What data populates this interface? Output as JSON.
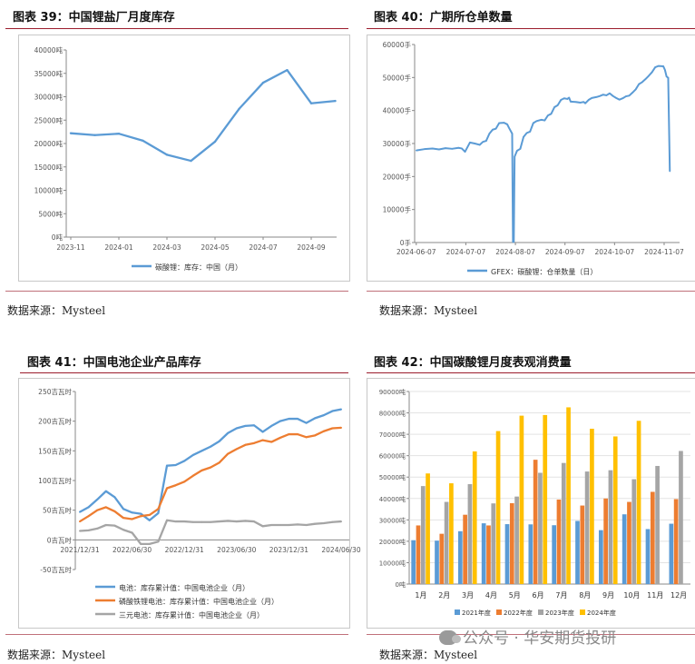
{
  "panels": {
    "p39": {
      "title": "图表 39：中国锂盐厂月度库存",
      "source": "数据来源：Mysteel"
    },
    "p40": {
      "title": "图表 40：广期所仓单数量",
      "source": "数据来源：Mysteel"
    },
    "p41": {
      "title": "图表 41：中国电池企业产品库存",
      "source": "数据来源：Mysteel"
    },
    "p42": {
      "title": "图表 42：中国碳酸锂月度表观消费量",
      "source": "数据来源：Mysteel"
    }
  },
  "watermark": {
    "text": "公众号 · 华安期货投研"
  },
  "chart_data": [
    {
      "id": "c39",
      "type": "line",
      "title": "中国锂盐厂月度库存",
      "yticks": [
        "0吨",
        "5000吨",
        "10000吨",
        "15000吨",
        "20000吨",
        "25000吨",
        "30000吨",
        "35000吨",
        "40000吨"
      ],
      "ylim": [
        0,
        40000
      ],
      "xticks": [
        "2023-11",
        "2024-01",
        "2024-03",
        "2024-05",
        "2024-07",
        "2024-09"
      ],
      "x_months": [
        0,
        1,
        2,
        3,
        4,
        5,
        6,
        7,
        8,
        9,
        10,
        11
      ],
      "series": [
        {
          "name": "碳酸锂：库存：中国（月）",
          "color": "#5b9bd5",
          "values": [
            22200,
            21800,
            22100,
            20600,
            17600,
            16300,
            20400,
            27400,
            33000,
            35700,
            28600,
            29100
          ]
        }
      ]
    },
    {
      "id": "c40",
      "type": "line",
      "title": "广期所仓单数量",
      "yticks": [
        "0手",
        "10000手",
        "20000手",
        "30000手",
        "40000手",
        "50000手",
        "60000手"
      ],
      "ylim": [
        0,
        60000
      ],
      "xticks": [
        "2024-06-07",
        "2024-07-07",
        "2024-08-07",
        "2024-09-07",
        "2024-10-07",
        "2024-11-07"
      ],
      "series": [
        {
          "name": "GFEX：碳酸锂：仓单数量（日）",
          "color": "#5b9bd5",
          "points": [
            [
              0,
              27900
            ],
            [
              5,
              28300
            ],
            [
              10,
              28500
            ],
            [
              14,
              28200
            ],
            [
              18,
              28600
            ],
            [
              22,
              28400
            ],
            [
              26,
              28700
            ],
            [
              28,
              28500
            ],
            [
              30,
              27500
            ],
            [
              33,
              30300
            ],
            [
              36,
              30000
            ],
            [
              39,
              29600
            ],
            [
              41,
              30500
            ],
            [
              43,
              30800
            ],
            [
              45,
              33000
            ],
            [
              47,
              34200
            ],
            [
              49,
              34500
            ],
            [
              51,
              36200
            ],
            [
              54,
              36300
            ],
            [
              56,
              35800
            ],
            [
              57,
              34800
            ],
            [
              59,
              33000
            ],
            [
              59.5,
              200
            ],
            [
              60,
              200
            ],
            [
              60.5,
              26000
            ],
            [
              62,
              27800
            ],
            [
              64,
              28400
            ],
            [
              66,
              32000
            ],
            [
              68,
              33200
            ],
            [
              70,
              33600
            ],
            [
              72,
              36200
            ],
            [
              74,
              36800
            ],
            [
              77,
              37200
            ],
            [
              79,
              37000
            ],
            [
              81,
              38500
            ],
            [
              83,
              39000
            ],
            [
              85,
              41000
            ],
            [
              87,
              41600
            ],
            [
              89,
              43200
            ],
            [
              91,
              43700
            ],
            [
              93,
              43500
            ],
            [
              94,
              43900
            ],
            [
              95,
              42700
            ],
            [
              98,
              42600
            ],
            [
              101,
              42400
            ],
            [
              103,
              42600
            ],
            [
              104,
              42200
            ],
            [
              106,
              43200
            ],
            [
              108,
              43800
            ],
            [
              111,
              44100
            ],
            [
              113,
              44400
            ],
            [
              115,
              44800
            ],
            [
              117,
              44600
            ],
            [
              119,
              45200
            ],
            [
              121,
              44400
            ],
            [
              123,
              43800
            ],
            [
              125,
              43300
            ],
            [
              127,
              43700
            ],
            [
              129,
              44300
            ],
            [
              131,
              44500
            ],
            [
              133,
              45400
            ],
            [
              135,
              46400
            ],
            [
              137,
              48000
            ],
            [
              139,
              48600
            ],
            [
              141,
              49500
            ],
            [
              143,
              50500
            ],
            [
              145,
              51600
            ],
            [
              147,
              53100
            ],
            [
              149,
              53500
            ],
            [
              152,
              53400
            ],
            [
              153,
              52300
            ],
            [
              154,
              50300
            ],
            [
              155,
              49900
            ],
            [
              156,
              21600
            ]
          ]
        }
      ],
      "xlim": [
        -1,
        162
      ]
    },
    {
      "id": "c41",
      "type": "line",
      "title": "中国电池企业产品库存",
      "yticks": [
        "-50吉瓦时",
        "0吉瓦时",
        "50吉瓦时",
        "100吉瓦时",
        "150吉瓦时",
        "200吉瓦时",
        "250吉瓦时"
      ],
      "ylim": [
        -50,
        250
      ],
      "xticks": [
        "2021/12/31",
        "2022/06/30",
        "2022/12/31",
        "2023/06/30",
        "2023/12/31",
        "2024/06/30"
      ],
      "series": [
        {
          "name": "电池：库存累计值：中国电池企业（月）",
          "color": "#5b9bd5",
          "values": [
            47,
            55,
            68,
            82,
            72,
            52,
            46,
            44,
            33,
            45,
            125,
            126,
            133,
            143,
            150,
            157,
            166,
            180,
            188,
            192,
            193,
            182,
            192,
            200,
            204,
            204,
            197,
            205,
            210,
            217,
            220
          ]
        },
        {
          "name": "磷酸铁锂电池：库存累计值：中国电池企业（月）",
          "color": "#ed7d31",
          "values": [
            31,
            40,
            50,
            55,
            48,
            37,
            35,
            40,
            42,
            52,
            87,
            92,
            98,
            108,
            117,
            122,
            130,
            145,
            153,
            160,
            163,
            168,
            165,
            172,
            178,
            178,
            173,
            176,
            183,
            188,
            189
          ]
        },
        {
          "name": "三元电池：库存累计值：中国电池企业（月）",
          "color": "#a5a5a5",
          "values": [
            15,
            16,
            19,
            25,
            24,
            17,
            12,
            -7,
            -7,
            -3,
            33,
            31,
            31,
            30,
            30,
            30,
            31,
            32,
            31,
            32,
            31,
            23,
            25,
            25,
            25,
            26,
            25,
            27,
            28,
            30,
            31
          ]
        }
      ]
    },
    {
      "id": "c42",
      "type": "bar",
      "title": "中国碳酸锂月度表观消费量",
      "yticks": [
        "0吨",
        "10000吨",
        "20000吨",
        "30000吨",
        "40000吨",
        "50000吨",
        "60000吨",
        "70000吨",
        "80000吨",
        "90000吨"
      ],
      "ylim": [
        0,
        90000
      ],
      "categories": [
        "1月",
        "2月",
        "3月",
        "4月",
        "5月",
        "6月",
        "7月",
        "8月",
        "9月",
        "10月",
        "11月",
        "12月"
      ],
      "series": [
        {
          "name": "2021年度",
          "color": "#5b9bd5",
          "values": [
            20500,
            20300,
            24700,
            28400,
            28000,
            27900,
            27500,
            29500,
            25200,
            32600,
            25700,
            28200
          ]
        },
        {
          "name": "2022年度",
          "color": "#ed7d31",
          "values": [
            27400,
            23500,
            32400,
            27400,
            37800,
            58100,
            39500,
            36700,
            40000,
            38400,
            43100,
            39700
          ]
        },
        {
          "name": "2023年度",
          "color": "#a5a5a5",
          "values": [
            45800,
            38400,
            46700,
            37700,
            40900,
            52000,
            56600,
            52600,
            53200,
            49000,
            55200,
            62200
          ]
        },
        {
          "name": "2024年度",
          "color": "#ffc000",
          "values": [
            51700,
            47100,
            62000,
            71500,
            78700,
            79000,
            82600,
            72600,
            69000,
            76300,
            null,
            null
          ]
        }
      ]
    }
  ]
}
